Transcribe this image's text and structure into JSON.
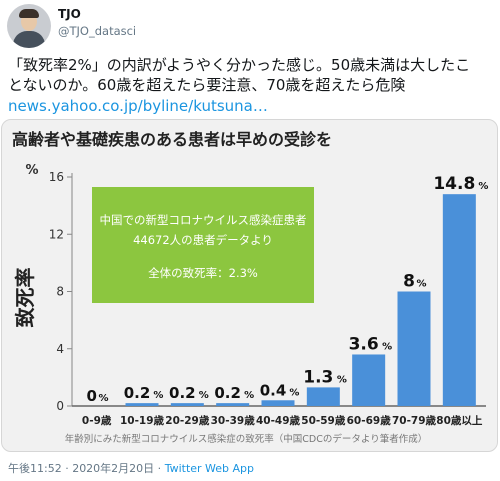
{
  "tweet": {
    "author": {
      "display_name": "TJO",
      "handle": "@TJO_datasci"
    },
    "text_lines": [
      "「致死率2%」の内訳がようやく分かった感じ。50歳未満は大したこ",
      "とないのか。60歳を超えたら要注意、70歳を超えたら危険"
    ],
    "link_text": "news.yahoo.co.jp/byline/kutsuna…",
    "timestamp": "午後11:52 · 2020年2月20日",
    "separator": " · ",
    "source_app": "Twitter Web App",
    "link_color": "#1b95e0"
  },
  "card": {
    "title": "高齢者や基礎疾患のある患者は早めの受診を",
    "note_box": {
      "line1": "中国での新型コロナウイルス感染症患者",
      "line2": "44672人の患者データより",
      "line3": "全体の致死率：2.3%",
      "color": "#8cc63f"
    },
    "caption": "年齢別にみた新型コロナウイルス感染症の致死率（中国CDCのデータより筆者作成）"
  },
  "chart_data": {
    "type": "bar",
    "title": "高齢者や基礎疾患のある患者は早めの受診を",
    "ylabel": "致死率",
    "yunit": "%",
    "ylim": [
      0,
      16
    ],
    "yticks": [
      0,
      4,
      8,
      12,
      16
    ],
    "grid": false,
    "bar_color": "#4a90d9",
    "categories": [
      "0-9歳",
      "10-19歳",
      "20-29歳",
      "30-39歳",
      "40-49歳",
      "50-59歳",
      "60-69歳",
      "70-79歳",
      "80歳以上"
    ],
    "values": [
      0,
      0.2,
      0.2,
      0.2,
      0.4,
      1.3,
      3.6,
      8,
      14.8
    ],
    "value_labels": [
      "0",
      "0.2",
      "0.2",
      "0.2",
      "0.4",
      "1.3",
      "3.6",
      "8",
      "14.8"
    ],
    "value_unit": "%"
  }
}
